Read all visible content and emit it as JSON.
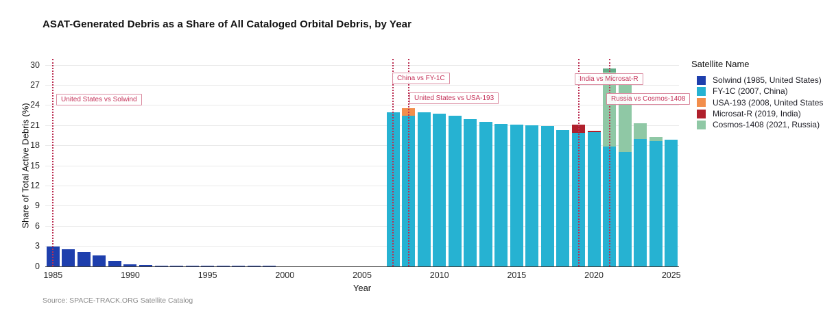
{
  "page": {
    "title": "ASAT-Generated Debris as a Share of All Cataloged Orbital Debris, by Year",
    "source_note": "Source: SPACE-TRACK.ORG Satellite Catalog"
  },
  "legend": {
    "title": "Satellite Name",
    "items": [
      {
        "label": "Solwind (1985, United States)",
        "color": "#1e3fad"
      },
      {
        "label": "FY-1C (2007, China)",
        "color": "#26b2d2"
      },
      {
        "label": "USA-193 (2008, United States)",
        "color": "#f28e4c"
      },
      {
        "label": "Microsat-R (2019, India)",
        "color": "#b0202c"
      },
      {
        "label": "Cosmos-1408 (2021, Russia)",
        "color": "#8fc8a5"
      }
    ]
  },
  "chart_data": {
    "type": "bar",
    "stacked": true,
    "title": "ASAT-Generated Debris as a Share of All Cataloged Orbital Debris, by Year",
    "xlabel": "Year",
    "ylabel": "Share of Total Active Debris (%)",
    "ylim": [
      0,
      30
    ],
    "yticks": [
      0,
      3,
      6,
      9,
      12,
      15,
      18,
      21,
      24,
      27,
      30
    ],
    "xticks": [
      1985,
      1990,
      1995,
      2000,
      2005,
      2010,
      2015,
      2020,
      2025
    ],
    "grid": true,
    "legend_position": "right",
    "years": [
      1985,
      1986,
      1987,
      1988,
      1989,
      1990,
      1991,
      1992,
      1993,
      1994,
      1995,
      1996,
      1997,
      1998,
      1999,
      2000,
      2001,
      2002,
      2003,
      2004,
      2005,
      2006,
      2007,
      2008,
      2009,
      2010,
      2011,
      2012,
      2013,
      2014,
      2015,
      2016,
      2017,
      2018,
      2019,
      2020,
      2021,
      2022,
      2023,
      2024,
      2025
    ],
    "series": [
      {
        "name": "Solwind (1985, United States)",
        "key": "solwind",
        "color": "#1e3fad",
        "values": [
          3.0,
          2.6,
          2.1,
          1.6,
          0.8,
          0.3,
          0.2,
          0.15,
          0.12,
          0.1,
          0.1,
          0.08,
          0.08,
          0.07,
          0.06,
          0.05,
          0.04,
          0.03,
          0.02,
          0.02,
          0.01,
          0.01,
          0,
          0,
          0,
          0,
          0,
          0,
          0,
          0,
          0,
          0,
          0,
          0,
          0,
          0,
          0,
          0,
          0,
          0,
          0
        ]
      },
      {
        "name": "FY-1C (2007, China)",
        "key": "fy1c",
        "color": "#26b2d2",
        "values": [
          0,
          0,
          0,
          0,
          0,
          0,
          0,
          0,
          0,
          0,
          0,
          0,
          0,
          0,
          0,
          0,
          0,
          0,
          0,
          0,
          0,
          0,
          23.0,
          22.4,
          23.0,
          22.8,
          22.4,
          21.9,
          21.5,
          21.2,
          21.1,
          21.0,
          20.9,
          20.3,
          19.9,
          20.0,
          17.9,
          17.0,
          19.0,
          18.7,
          18.9
        ]
      },
      {
        "name": "USA-193 (2008, United States)",
        "key": "usa193",
        "color": "#f28e4c",
        "values": [
          0,
          0,
          0,
          0,
          0,
          0,
          0,
          0,
          0,
          0,
          0,
          0,
          0,
          0,
          0,
          0,
          0,
          0,
          0,
          0,
          0,
          0,
          0,
          1.2,
          0,
          0,
          0,
          0,
          0,
          0,
          0,
          0,
          0,
          0,
          0,
          0,
          0,
          0,
          0,
          0,
          0
        ]
      },
      {
        "name": "Microsat-R (2019, India)",
        "key": "microsat",
        "color": "#b0202c",
        "values": [
          0,
          0,
          0,
          0,
          0,
          0,
          0,
          0,
          0,
          0,
          0,
          0,
          0,
          0,
          0,
          0,
          0,
          0,
          0,
          0,
          0,
          0,
          0,
          0,
          0,
          0,
          0,
          0,
          0,
          0,
          0,
          0,
          0,
          0,
          1.2,
          0.2,
          0,
          0,
          0,
          0,
          0
        ]
      },
      {
        "name": "Cosmos-1408 (2021, Russia)",
        "key": "cosmos",
        "color": "#8fc8a5",
        "values": [
          0,
          0,
          0,
          0,
          0,
          0,
          0,
          0,
          0,
          0,
          0,
          0,
          0,
          0,
          0,
          0,
          0,
          0,
          0,
          0,
          0,
          0,
          0,
          0,
          0,
          0,
          0,
          0,
          0,
          0,
          0,
          0,
          0,
          0,
          0,
          0,
          11.6,
          10.1,
          2.3,
          0.6,
          0
        ]
      }
    ],
    "top_cap_shade": {
      "year": 2021,
      "series": "cosmos",
      "value": 0.55,
      "color": "#63ac87"
    },
    "events": [
      {
        "year": 1985,
        "label": "United States vs Solwind"
      },
      {
        "year": 2007,
        "label": "China vs FY-1C"
      },
      {
        "year": 2008,
        "label": "United States vs USA-193"
      },
      {
        "year": 2019,
        "label": "India vs Microsat-R"
      },
      {
        "year": 2021,
        "label": "Russia vs Cosmos-1408"
      }
    ],
    "annotation_color": "#c5335a"
  }
}
